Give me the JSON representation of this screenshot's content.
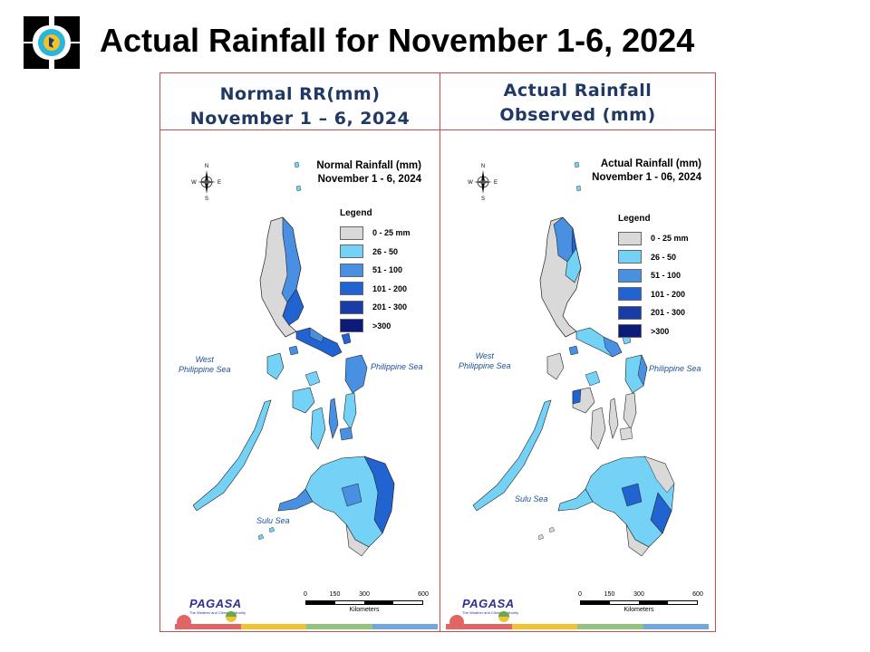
{
  "slide": {
    "title": "Actual Rainfall for November 1-6, 2024"
  },
  "panels": [
    {
      "header_line1": "Normal RR(mm)",
      "header_line2": "November 1 – 6, 2024",
      "map_title_line1": "Normal Rainfall (mm)",
      "map_title_line2": "November 1 - 6, 2024"
    },
    {
      "header_line1": "Actual Rainfall",
      "header_line2": "Observed (mm)",
      "map_title_line1": "Actual Rainfall (mm)",
      "map_title_line2": "November 1 - 06, 2024"
    }
  ],
  "legend": {
    "title": "Legend",
    "items": [
      {
        "label": "0 - 25 mm",
        "color": "#d9d9d9"
      },
      {
        "label": "26 - 50",
        "color": "#73d2f5"
      },
      {
        "label": "51 - 100",
        "color": "#4a90e2"
      },
      {
        "label": "101 - 200",
        "color": "#2163d0"
      },
      {
        "label": "201 - 300",
        "color": "#1a3ca8"
      },
      {
        "label": ">300",
        "color": "#0c1a7a"
      }
    ]
  },
  "labels": {
    "west_sea_line1": "West",
    "west_sea_line2": "Philippine Sea",
    "philippine_sea": "Philippine Sea",
    "sulu_sea": "Sulu Sea",
    "compass_n": "N",
    "compass_s": "S",
    "compass_e": "E",
    "compass_w": "W"
  },
  "scale_bar": {
    "ticks": [
      "0",
      "150",
      "300",
      "600"
    ],
    "unit": "Kilometers"
  },
  "branding": {
    "agency": "PAGASA",
    "tagline": "The Weather and Climate Authority"
  },
  "colors": {
    "frame": "#c0504d",
    "header_text": "#1f3864",
    "stripe": [
      "#e06666",
      "#f1c232",
      "#93c47d",
      "#6fa8dc"
    ]
  }
}
